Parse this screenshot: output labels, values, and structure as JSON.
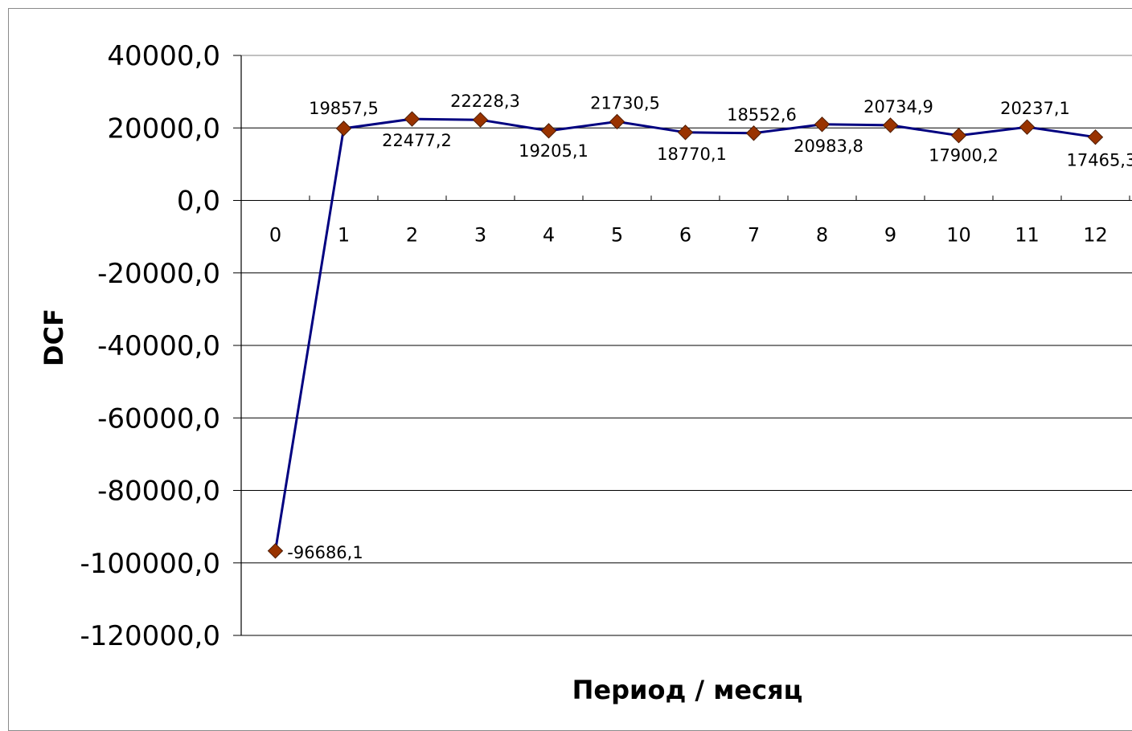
{
  "chart_data": {
    "type": "line",
    "title": "",
    "xlabel": "Период / месяц",
    "ylabel": "DCF",
    "categories": [
      "0",
      "1",
      "2",
      "3",
      "4",
      "5",
      "6",
      "7",
      "8",
      "9",
      "10",
      "11",
      "12"
    ],
    "series": [
      {
        "values": [
          -96686.1,
          19857.5,
          22477.2,
          22228.3,
          19205.1,
          21730.5,
          18770.1,
          18552.6,
          20983.8,
          20734.9,
          17900.2,
          20237.1,
          17465.3
        ],
        "labels": [
          "-96686,1",
          "19857,5",
          "22477,2",
          "22228,3",
          "19205,1",
          "21730,5",
          "18770,1",
          "18552,6",
          "20983,8",
          "20734,9",
          "17900,2",
          "20237,1",
          "17465,3"
        ],
        "line_color": "#000080",
        "marker_color": "#993300",
        "marker": "diamond"
      }
    ],
    "ylim": [
      -120000,
      40000
    ],
    "yticks": [
      40000,
      20000,
      0,
      -20000,
      -40000,
      -60000,
      -80000,
      -100000,
      -120000
    ],
    "ytick_labels": [
      "40000,0",
      "20000,0",
      "0,0",
      "-20000,0",
      "-40000,0",
      "-60000,0",
      "-80000,0",
      "-100000,0",
      "-120000,0"
    ],
    "grid": true,
    "legend": "none"
  }
}
